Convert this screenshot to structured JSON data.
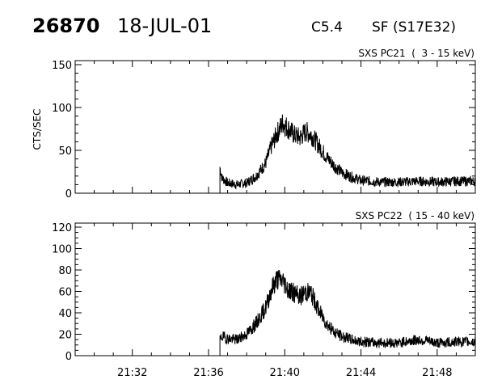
{
  "header": {
    "event_number": "26870",
    "date": "18-JUL-01",
    "goes_class": "C5.4",
    "location": "SF (S17E32)"
  },
  "chart_data": [
    {
      "type": "line",
      "title": "SXS PC21  (  3 - 15 keV)",
      "ylabel": "CTS/SEC",
      "xlabel": "",
      "x_range": [
        "21:29",
        "21:50"
      ],
      "ylim": [
        0,
        150
      ],
      "yticks": [
        "0",
        "50",
        "100",
        "150"
      ],
      "xticks": [
        "21:32",
        "21:36",
        "21:40",
        "21:44",
        "21:48"
      ],
      "data_start": "21:36.6",
      "series": [
        {
          "x": [
            36.6,
            36.7,
            37.0,
            37.5,
            38.0,
            38.5,
            39.0,
            39.3,
            39.6,
            39.9,
            40.2,
            40.5,
            40.8,
            41.1,
            41.4,
            41.8,
            42.2,
            42.6,
            43.0,
            43.5,
            44.0,
            45.0,
            46.0,
            47.0,
            48.0,
            49.0,
            50.0
          ],
          "values": [
            30,
            18,
            12,
            10,
            12,
            20,
            35,
            55,
            70,
            82,
            75,
            68,
            65,
            72,
            68,
            55,
            42,
            32,
            24,
            19,
            15,
            13,
            13,
            14,
            13,
            14,
            14
          ]
        }
      ]
    },
    {
      "type": "line",
      "title": "SXS PC22  ( 15 - 40 keV)",
      "ylabel": "",
      "xlabel": "",
      "x_range": [
        "21:29",
        "21:50"
      ],
      "ylim": [
        0,
        120
      ],
      "yticks": [
        "0",
        "20",
        "40",
        "60",
        "80",
        "100",
        "120"
      ],
      "xticks": [
        "21:32",
        "21:36",
        "21:40",
        "21:44",
        "21:48"
      ],
      "data_start": "21:36.6",
      "series": [
        {
          "x": [
            36.6,
            36.7,
            37.0,
            37.5,
            38.0,
            38.5,
            39.0,
            39.3,
            39.6,
            39.9,
            40.2,
            40.5,
            40.8,
            41.1,
            41.4,
            41.8,
            42.2,
            42.6,
            43.0,
            43.5,
            44.0,
            45.0,
            46.0,
            47.0,
            48.0,
            49.0,
            50.0
          ],
          "values": [
            14,
            18,
            16,
            15,
            20,
            30,
            45,
            62,
            72,
            70,
            62,
            58,
            55,
            60,
            58,
            42,
            30,
            22,
            18,
            15,
            13,
            12,
            12,
            15,
            12,
            13,
            13
          ]
        }
      ]
    }
  ]
}
